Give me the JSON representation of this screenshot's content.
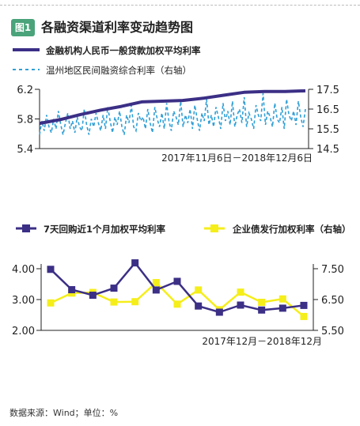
{
  "figure": {
    "badge": "图1",
    "title": "各融资渠道利率变动趋势图",
    "source": "数据来源：Wind；单位：%"
  },
  "colors": {
    "navy": "#3b2f86",
    "blue_dash": "#2f9fd6",
    "yellow": "#f5ee1a",
    "axis": "#222222",
    "badge": "#4aa37a"
  },
  "chart_data": [
    {
      "type": "line",
      "legend_position": "top",
      "date_range_label": "2017年11月6日－2018年12月6日",
      "left_axis": {
        "ticks": [
          "6.2",
          "5.8",
          "5.4"
        ],
        "range": [
          5.4,
          6.2
        ]
      },
      "right_axis": {
        "ticks": [
          "17.5",
          "16.5",
          "15.5",
          "14.5"
        ],
        "range": [
          14.5,
          17.5
        ]
      },
      "series": [
        {
          "name": "金融机构人民币一般贷款加权平均利率",
          "axis": "left",
          "style": "solid",
          "color": "#3b2f86",
          "x": [
            "2017-11",
            "2017-12",
            "2018-01",
            "2018-02",
            "2018-03",
            "2018-04",
            "2018-05",
            "2018-06",
            "2018-07",
            "2018-08",
            "2018-09",
            "2018-10",
            "2018-11",
            "2018-12"
          ],
          "values": [
            5.74,
            5.79,
            5.86,
            5.92,
            5.97,
            6.03,
            6.04,
            6.05,
            6.08,
            6.12,
            6.16,
            6.17,
            6.17,
            6.18
          ]
        },
        {
          "name": "温州地区民间融资综合利率（右轴）",
          "axis": "right",
          "style": "dashed",
          "color": "#2f9fd6",
          "x_start": "2017-11-06",
          "x_end": "2018-12-06",
          "frequency": "approx. daily",
          "values": [
            15.2,
            15.9,
            15.4,
            16.2,
            15.6,
            15.3,
            16.0,
            15.5,
            16.4,
            15.7,
            15.2,
            15.8,
            16.3,
            15.5,
            15.9,
            15.3,
            16.1,
            15.6,
            15.4,
            16.5,
            15.7,
            15.2,
            16.0,
            15.6,
            16.3,
            15.8,
            15.4,
            16.2,
            15.5,
            16.6,
            15.9,
            15.3,
            16.1,
            15.7,
            16.4,
            15.6,
            15.2,
            16.2,
            15.8,
            16.7,
            15.6,
            15.4,
            16.3,
            15.9,
            16.1,
            15.5,
            16.5,
            15.8,
            15.3,
            16.6,
            16.0,
            15.6,
            16.3,
            15.5,
            16.8,
            15.9,
            15.4,
            16.4,
            16.1,
            15.7,
            16.9,
            15.6,
            16.2,
            15.8,
            16.5,
            15.5,
            16.7,
            16.0,
            15.4,
            16.3,
            15.9,
            17.0,
            15.7,
            16.2,
            15.6,
            16.6,
            16.1,
            15.5,
            16.8,
            15.9,
            16.4,
            15.7,
            16.9,
            15.6,
            16.2,
            16.5,
            15.8,
            17.1,
            15.6,
            16.3,
            16.0,
            15.5,
            16.7,
            16.2,
            15.9,
            17.3,
            15.7,
            16.4,
            16.1,
            15.6,
            16.8,
            16.0,
            15.8,
            16.6,
            15.5,
            17.0,
            16.2,
            15.9,
            16.4,
            15.7,
            16.9,
            16.1,
            15.6,
            16.5
          ]
        }
      ]
    },
    {
      "type": "line",
      "legend_position": "middle",
      "date_range_label": "2017年12月－2018年12月",
      "left_axis": {
        "ticks": [
          "4.00",
          "3.00",
          "2.00"
        ],
        "range": [
          2.0,
          4.0
        ]
      },
      "right_axis": {
        "ticks": [
          "7.50",
          "6.50",
          "5.50"
        ],
        "range": [
          5.5,
          7.5
        ]
      },
      "x": [
        "2017-12",
        "2018-01",
        "2018-02",
        "2018-03",
        "2018-04",
        "2018-05",
        "2018-06",
        "2018-07",
        "2018-08",
        "2018-09",
        "2018-10",
        "2018-11",
        "2018-12"
      ],
      "series": [
        {
          "name": "7天回购近1个月加权平均利率",
          "axis": "left",
          "color": "#3b2f86",
          "marker": "square",
          "values": [
            3.98,
            3.32,
            3.14,
            3.37,
            4.19,
            3.31,
            3.59,
            2.79,
            2.59,
            2.82,
            2.66,
            2.72,
            2.81
          ]
        },
        {
          "name": "企业债发行加权利率（右轴）",
          "axis": "right",
          "color": "#f5ee1a",
          "marker": "square",
          "values": [
            6.39,
            6.71,
            6.73,
            6.42,
            6.43,
            7.05,
            6.35,
            6.81,
            6.17,
            6.74,
            6.41,
            6.52,
            5.95
          ]
        }
      ]
    }
  ]
}
